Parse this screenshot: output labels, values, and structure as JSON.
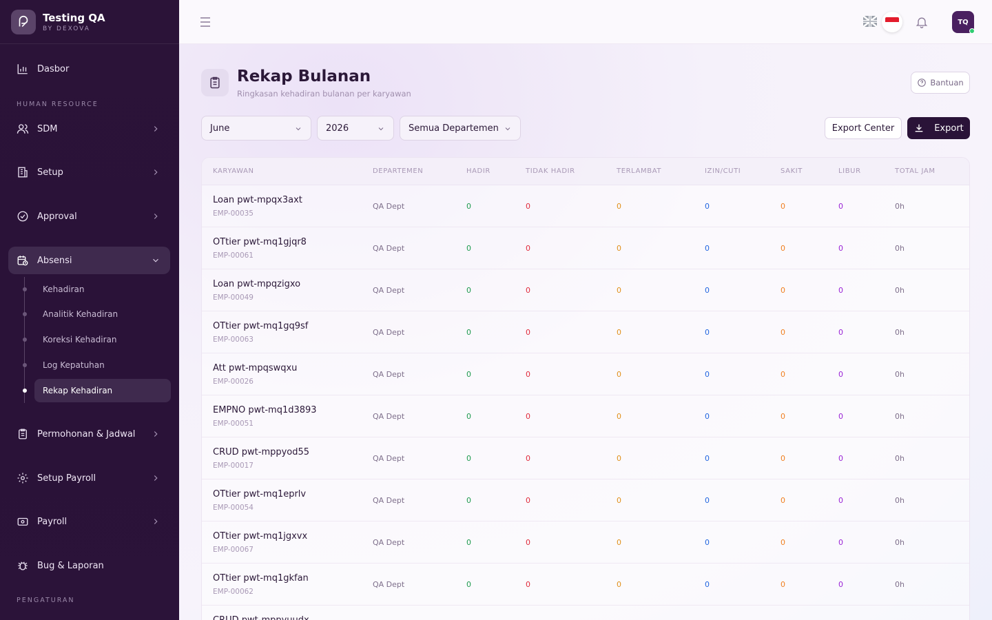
{
  "brand": {
    "title": "Testing QA",
    "subtitle": "BY DEXOVA"
  },
  "nav": {
    "dasbor": "Dasbor",
    "section_hr": "HUMAN RESOURCE",
    "sdm": "SDM",
    "setup": "Setup",
    "approval": "Approval",
    "absensi": "Absensi",
    "sub": [
      "Kehadiran",
      "Analitik Kehadiran",
      "Koreksi Kehadiran",
      "Log Kepatuhan",
      "Rekap Kehadiran"
    ],
    "permohonan": "Permohonan & Jadwal",
    "setup_payroll": "Setup Payroll",
    "payroll": "Payroll",
    "bug": "Bug & Laporan",
    "section_settings": "PENGATURAN"
  },
  "topbar": {
    "avatar": "TQ"
  },
  "page": {
    "title": "Rekap Bulanan",
    "subtitle": "Ringkasan kehadiran bulanan per karyawan",
    "help": "Bantuan"
  },
  "filters": {
    "month": "June",
    "year": "2026",
    "department": "Semua Departemen"
  },
  "actions": {
    "export_center": "Export Center",
    "export": "Export"
  },
  "table": {
    "headers": [
      "KARYAWAN",
      "DEPARTEMEN",
      "HADIR",
      "TIDAK HADIR",
      "TERLAMBAT",
      "IZIN/CUTI",
      "SAKIT",
      "LIBUR",
      "TOTAL JAM"
    ],
    "rows": [
      {
        "name": "Loan pwt-mpqx3axt",
        "emp": "EMP-00035",
        "dept": "QA Dept",
        "hadir": "0",
        "tidak": "0",
        "terlambat": "0",
        "izin": "0",
        "sakit": "0",
        "libur": "0",
        "jam": "0h"
      },
      {
        "name": "OTtier pwt-mq1gjqr8",
        "emp": "EMP-00061",
        "dept": "QA Dept",
        "hadir": "0",
        "tidak": "0",
        "terlambat": "0",
        "izin": "0",
        "sakit": "0",
        "libur": "0",
        "jam": "0h"
      },
      {
        "name": "Loan pwt-mpqzigxo",
        "emp": "EMP-00049",
        "dept": "QA Dept",
        "hadir": "0",
        "tidak": "0",
        "terlambat": "0",
        "izin": "0",
        "sakit": "0",
        "libur": "0",
        "jam": "0h"
      },
      {
        "name": "OTtier pwt-mq1gq9sf",
        "emp": "EMP-00063",
        "dept": "QA Dept",
        "hadir": "0",
        "tidak": "0",
        "terlambat": "0",
        "izin": "0",
        "sakit": "0",
        "libur": "0",
        "jam": "0h"
      },
      {
        "name": "Att pwt-mpqswqxu",
        "emp": "EMP-00026",
        "dept": "QA Dept",
        "hadir": "0",
        "tidak": "0",
        "terlambat": "0",
        "izin": "0",
        "sakit": "0",
        "libur": "0",
        "jam": "0h"
      },
      {
        "name": "EMPNO pwt-mq1d3893",
        "emp": "EMP-00051",
        "dept": "QA Dept",
        "hadir": "0",
        "tidak": "0",
        "terlambat": "0",
        "izin": "0",
        "sakit": "0",
        "libur": "0",
        "jam": "0h"
      },
      {
        "name": "CRUD pwt-mppyod55",
        "emp": "EMP-00017",
        "dept": "QA Dept",
        "hadir": "0",
        "tidak": "0",
        "terlambat": "0",
        "izin": "0",
        "sakit": "0",
        "libur": "0",
        "jam": "0h"
      },
      {
        "name": "OTtier pwt-mq1eprlv",
        "emp": "EMP-00054",
        "dept": "QA Dept",
        "hadir": "0",
        "tidak": "0",
        "terlambat": "0",
        "izin": "0",
        "sakit": "0",
        "libur": "0",
        "jam": "0h"
      },
      {
        "name": "OTtier pwt-mq1jgxvx",
        "emp": "EMP-00067",
        "dept": "QA Dept",
        "hadir": "0",
        "tidak": "0",
        "terlambat": "0",
        "izin": "0",
        "sakit": "0",
        "libur": "0",
        "jam": "0h"
      },
      {
        "name": "OTtier pwt-mq1gkfan",
        "emp": "EMP-00062",
        "dept": "QA Dept",
        "hadir": "0",
        "tidak": "0",
        "terlambat": "0",
        "izin": "0",
        "sakit": "0",
        "libur": "0",
        "jam": "0h"
      },
      {
        "name": "CRUD pwt-mppyuudx",
        "emp": "",
        "dept": "",
        "hadir": "",
        "tidak": "",
        "terlambat": "",
        "izin": "",
        "sakit": "",
        "libur": "",
        "jam": ""
      }
    ]
  },
  "icons": [
    "logo-icon",
    "chart-icon",
    "users-icon",
    "building-icon",
    "check-circle-icon",
    "calendar-clock-icon",
    "clipboard-icon",
    "gear-icon",
    "wallet-icon",
    "bug-icon",
    "menu-icon",
    "uk-flag-icon",
    "id-flag-icon",
    "bell-icon",
    "help-icon",
    "download-icon",
    "chevron-down-icon",
    "chevron-right-icon"
  ],
  "colors": {
    "sidebar": "#2b1338",
    "accent": "#2a1338",
    "hadir": "#1e9a4e",
    "tidak_hadir": "#e02b3c",
    "terlambat": "#e0901a",
    "izin": "#2266e0",
    "sakit": "#f07f1f",
    "libur": "#9a24d6"
  }
}
